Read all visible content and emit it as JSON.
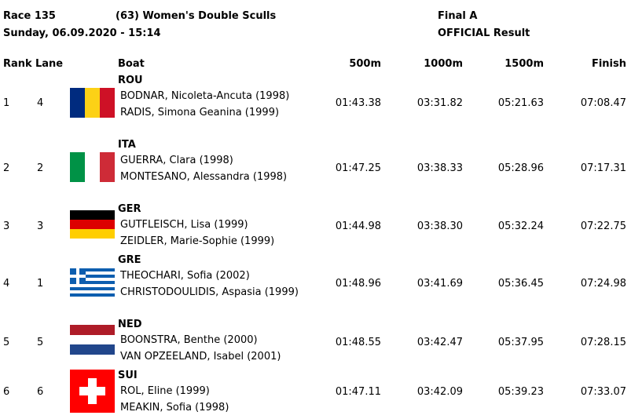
{
  "header": {
    "race": "Race 135",
    "event": "(63) Women's Double Sculls",
    "phase": "Final A",
    "date": "Sunday, 06.09.2020 - 15:14",
    "status": "OFFICIAL Result"
  },
  "table": {
    "columns": [
      "Rank",
      "Lane",
      "Boat",
      "500m",
      "1000m",
      "1500m",
      "Finish"
    ],
    "rows": [
      {
        "rank": "1",
        "lane": "4",
        "country": "ROU",
        "crew": [
          "BODNAR, Nicoleta-Ancuta (1998)",
          "RADIS, Simona Geanina (1999)"
        ],
        "splits": [
          "01:43.38",
          "03:31.82",
          "05:21.63",
          "07:08.47"
        ]
      },
      {
        "rank": "2",
        "lane": "2",
        "country": "ITA",
        "crew": [
          "GUERRA, Clara (1998)",
          "MONTESANO, Alessandra (1998)"
        ],
        "splits": [
          "01:47.25",
          "03:38.33",
          "05:28.96",
          "07:17.31"
        ]
      },
      {
        "rank": "3",
        "lane": "3",
        "country": "GER",
        "crew": [
          "GUTFLEISCH, Lisa (1999)",
          "ZEIDLER, Marie-Sophie (1999)"
        ],
        "splits": [
          "01:44.98",
          "03:38.30",
          "05:32.24",
          "07:22.75"
        ]
      },
      {
        "rank": "4",
        "lane": "1",
        "country": "GRE",
        "crew": [
          "THEOCHARI, Sofia (2002)",
          "CHRISTODOULIDIS, Aspasia (1999)"
        ],
        "splits": [
          "01:48.96",
          "03:41.69",
          "05:36.45",
          "07:24.98"
        ]
      },
      {
        "rank": "5",
        "lane": "5",
        "country": "NED",
        "crew": [
          "BOONSTRA, Benthe (2000)",
          "VAN OPZEELAND, Isabel (2001)"
        ],
        "splits": [
          "01:48.55",
          "03:42.47",
          "05:37.95",
          "07:28.15"
        ]
      },
      {
        "rank": "6",
        "lane": "6",
        "country": "SUI",
        "crew": [
          "ROL, Eline (1999)",
          "MEAKIN, Sofia (1998)"
        ],
        "splits": [
          "01:47.11",
          "03:42.09",
          "05:39.23",
          "07:33.07"
        ]
      }
    ]
  }
}
